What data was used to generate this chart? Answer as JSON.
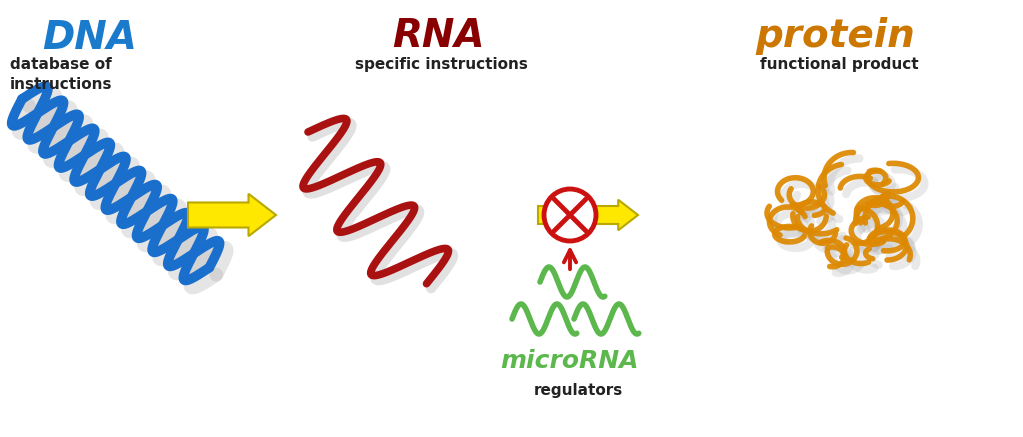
{
  "bg_color": "#ffffff",
  "dna_color": "#1a6fcc",
  "rna_color": "#aa1111",
  "mirna_color": "#5cb84d",
  "protein_color": "#dd8800",
  "arrow_fill": "#ffe800",
  "arrow_edge": "#b8a800",
  "inhibit_color": "#cc1111",
  "text_dark": "#222222",
  "dna_label": "DNA",
  "dna_sub1": "database of",
  "dna_sub2": "instructions",
  "rna_label": "RNA",
  "rna_sub": "specific instructions",
  "protein_label": "protein",
  "protein_sub": "functional product",
  "mirna_label": "microRNA",
  "mirna_sub": "regulators",
  "dna_label_color": "#1a7acc",
  "rna_label_color": "#880000",
  "protein_label_color": "#cc7700",
  "mirna_label_color": "#5cb84d"
}
